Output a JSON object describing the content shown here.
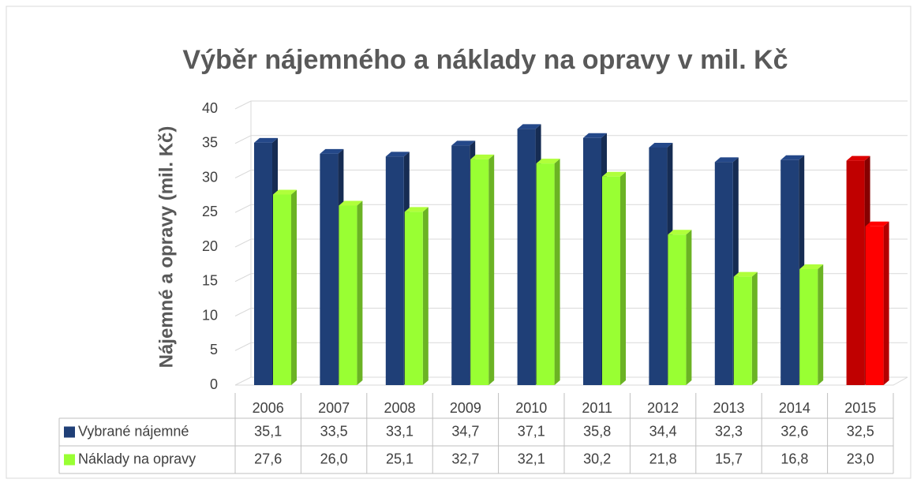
{
  "chart_data": {
    "type": "bar3d",
    "title": "Výběr nájemného a náklady na opravy v mil. Kč",
    "y_label": "Nájemné a opravy (mil. Kč)",
    "categories": [
      "2006",
      "2007",
      "2008",
      "2009",
      "2010",
      "2011",
      "2012",
      "2013",
      "2014",
      "2015"
    ],
    "series": [
      {
        "name": "Vybrané nájemné",
        "color": "#1f3f77",
        "colors": [
          "#1f3f77",
          "#1f3f77",
          "#1f3f77",
          "#1f3f77",
          "#1f3f77",
          "#1f3f77",
          "#1f3f77",
          "#1f3f77",
          "#1f3f77",
          "#c00000"
        ],
        "values": [
          35.1,
          33.5,
          33.1,
          34.7,
          37.1,
          35.8,
          34.4,
          32.3,
          32.6,
          32.5
        ],
        "value_labels": [
          "35,1",
          "33,5",
          "33,1",
          "34,7",
          "37,1",
          "35,8",
          "34,4",
          "32,3",
          "32,6",
          "32,5"
        ]
      },
      {
        "name": "Náklady na opravy",
        "color": "#99ff33",
        "colors": [
          "#99ff33",
          "#99ff33",
          "#99ff33",
          "#99ff33",
          "#99ff33",
          "#99ff33",
          "#99ff33",
          "#99ff33",
          "#99ff33",
          "#ff0000"
        ],
        "values": [
          27.6,
          26.0,
          25.1,
          32.7,
          32.1,
          30.2,
          21.8,
          15.7,
          16.8,
          23.0
        ],
        "value_labels": [
          "27,6",
          "26,0",
          "25,1",
          "32,7",
          "32,1",
          "30,2",
          "21,8",
          "15,7",
          "16,8",
          "23,0"
        ]
      }
    ],
    "ylim": [
      0,
      40
    ],
    "yticks": [
      0,
      5,
      10,
      15,
      20,
      25,
      30,
      35,
      40
    ],
    "grid": true
  }
}
